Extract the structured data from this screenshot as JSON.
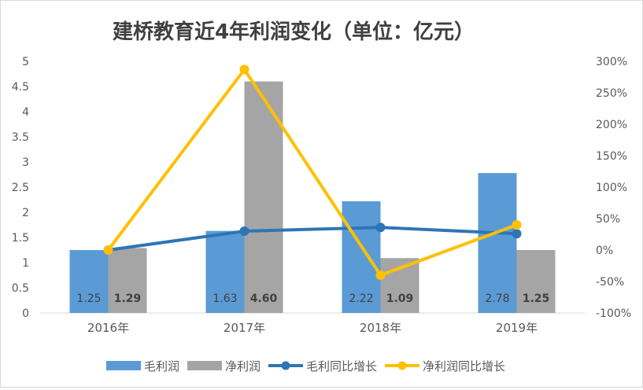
{
  "chart_data": {
    "type": "bar+line",
    "title": "建桥教育近4年利润变化（单位：亿元）",
    "categories": [
      "2016年",
      "2017年",
      "2018年",
      "2019年"
    ],
    "series": [
      {
        "name": "毛利润",
        "kind": "bar",
        "axis": "left",
        "color": "#5b9bd5",
        "values": [
          1.25,
          1.63,
          2.22,
          2.78
        ],
        "labels": [
          "1.25",
          "1.63",
          "2.22",
          "2.78"
        ]
      },
      {
        "name": "净利润",
        "kind": "bar",
        "axis": "left",
        "color": "#a5a5a5",
        "values": [
          1.29,
          4.6,
          1.09,
          1.25
        ],
        "labels": [
          "1.29",
          "4.60",
          "1.09",
          "1.25"
        ]
      },
      {
        "name": "毛利同比增长",
        "kind": "line",
        "axis": "right",
        "color": "#2e75b6",
        "values": [
          0,
          30,
          36,
          26
        ]
      },
      {
        "name": "净利润同比增长",
        "kind": "line",
        "axis": "right",
        "color": "#ffc000",
        "values": [
          0,
          287,
          -40,
          40
        ]
      }
    ],
    "y_left": {
      "min": 0,
      "max": 5,
      "ticks": [
        "0",
        "0.5",
        "1",
        "1.5",
        "2",
        "2.5",
        "3",
        "3.5",
        "4",
        "4.5",
        "5"
      ]
    },
    "y_right": {
      "min": -100,
      "max": 300,
      "ticks": [
        "-100%",
        "-50%",
        "0%",
        "50%",
        "100%",
        "150%",
        "200%",
        "250%",
        "300%"
      ]
    },
    "grid": false,
    "legend_position": "bottom"
  }
}
